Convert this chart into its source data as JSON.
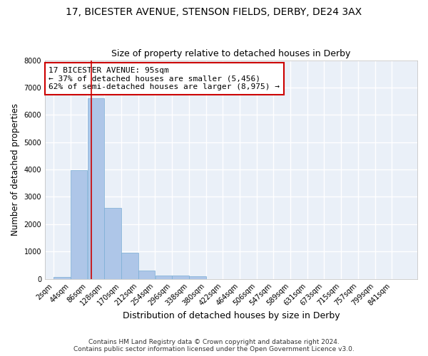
{
  "title1": "17, BICESTER AVENUE, STENSON FIELDS, DERBY, DE24 3AX",
  "title2": "Size of property relative to detached houses in Derby",
  "xlabel": "Distribution of detached houses by size in Derby",
  "ylabel": "Number of detached properties",
  "footnote1": "Contains HM Land Registry data © Crown copyright and database right 2024.",
  "footnote2": "Contains public sector information licensed under the Open Government Licence v3.0.",
  "bins": [
    2,
    44,
    86,
    128,
    170,
    212,
    254,
    296,
    338,
    380,
    422,
    464,
    506,
    547,
    589,
    631,
    673,
    715,
    757,
    799,
    841
  ],
  "bar_heights": [
    80,
    3980,
    6600,
    2600,
    960,
    310,
    130,
    130,
    100,
    0,
    0,
    0,
    0,
    0,
    0,
    0,
    0,
    0,
    0,
    0
  ],
  "bar_color": "#aec6e8",
  "bar_edge_color": "#7aadd4",
  "bg_color": "#eaf0f8",
  "grid_color": "#ffffff",
  "vline_x": 95,
  "vline_color": "#cc0000",
  "annotation_text": "17 BICESTER AVENUE: 95sqm\n← 37% of detached houses are smaller (5,456)\n62% of semi-detached houses are larger (8,975) →",
  "ylim": [
    0,
    8000
  ],
  "yticks": [
    0,
    1000,
    2000,
    3000,
    4000,
    5000,
    6000,
    7000,
    8000
  ],
  "bin_width": 42,
  "title1_fontsize": 10,
  "title2_fontsize": 9,
  "xlabel_fontsize": 9,
  "ylabel_fontsize": 8.5,
  "tick_fontsize": 7,
  "annot_fontsize": 8,
  "footnote_fontsize": 6.5
}
